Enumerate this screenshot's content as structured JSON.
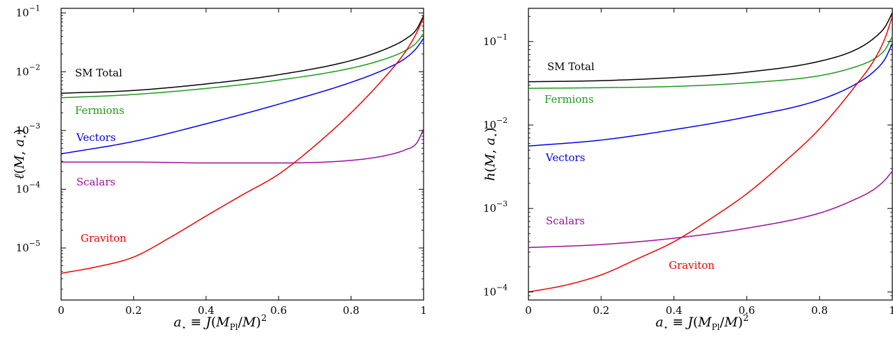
{
  "chart_data": [
    {
      "type": "line",
      "title": "",
      "xlabel": "a⋆ ≡ J(MPl/M)²",
      "ylabel": "ℓ(M, a⋆)",
      "xscale": "linear",
      "yscale": "log",
      "xlim": [
        0,
        1
      ],
      "ylim": [
        1.3e-06,
        0.12
      ],
      "x_ticks": [
        0,
        0.2,
        0.4,
        0.6,
        0.8,
        1
      ],
      "x_tick_labels": [
        "0",
        "0.2",
        "0.4",
        "0.6",
        "0.8",
        "1"
      ],
      "y_ticks": [
        1e-05,
        0.0001,
        0.001,
        0.01,
        0.1
      ],
      "y_tick_exponents": [
        "−5",
        "−4",
        "−3",
        "−2",
        "−1"
      ],
      "grid": false,
      "legend": "inline labels",
      "series": [
        {
          "name": "SM Total",
          "color": "#000000",
          "x": [
            0,
            0.2,
            0.4,
            0.6,
            0.8,
            0.9,
            0.95,
            0.98,
            1.0
          ],
          "y": [
            0.0043,
            0.0048,
            0.0062,
            0.0089,
            0.0155,
            0.025,
            0.036,
            0.052,
            0.09
          ]
        },
        {
          "name": "Fermions",
          "color": "#1a9a1a",
          "x": [
            0,
            0.2,
            0.4,
            0.6,
            0.8,
            0.9,
            0.95,
            0.98,
            1.0
          ],
          "y": [
            0.0036,
            0.0041,
            0.0052,
            0.0072,
            0.0115,
            0.017,
            0.023,
            0.031,
            0.045
          ]
        },
        {
          "name": "Vectors",
          "color": "#0000ee",
          "x": [
            0,
            0.2,
            0.4,
            0.6,
            0.8,
            0.9,
            0.95,
            0.98,
            1.0
          ],
          "y": [
            0.0004,
            0.00065,
            0.0013,
            0.0028,
            0.0066,
            0.0115,
            0.017,
            0.025,
            0.037
          ]
        },
        {
          "name": "Scalars",
          "color": "#9a109a",
          "x": [
            0,
            0.2,
            0.4,
            0.6,
            0.8,
            0.9,
            0.95,
            0.98,
            1.0
          ],
          "y": [
            0.00029,
            0.00029,
            0.00028,
            0.00028,
            0.00031,
            0.00038,
            0.00047,
            0.0006,
            0.00105
          ]
        },
        {
          "name": "Graviton",
          "color": "#ee0000",
          "x": [
            0,
            0.1,
            0.2,
            0.3,
            0.4,
            0.5,
            0.6,
            0.7,
            0.8,
            0.9,
            0.95,
            0.98,
            1.0
          ],
          "y": [
            3.7e-06,
            4.8e-06,
            7e-06,
            1.5e-05,
            3.5e-05,
            8e-05,
            0.00018,
            0.00055,
            0.002,
            0.009,
            0.022,
            0.045,
            0.085
          ]
        }
      ]
    },
    {
      "type": "line",
      "title": "",
      "xlabel": "a⋆ ≡ J(MPl/M)²",
      "ylabel": "h(M, a⋆)",
      "xscale": "linear",
      "yscale": "log",
      "xlim": [
        0,
        1
      ],
      "ylim": [
        8e-05,
        0.25
      ],
      "x_ticks": [
        0,
        0.2,
        0.4,
        0.6,
        0.8,
        1
      ],
      "x_tick_labels": [
        "0",
        "0.2",
        "0.4",
        "0.6",
        "0.8",
        "1"
      ],
      "y_ticks": [
        0.0001,
        0.001,
        0.01,
        0.1
      ],
      "y_tick_exponents": [
        "−4",
        "−3",
        "−2",
        "−1"
      ],
      "grid": false,
      "legend": "inline labels",
      "series": [
        {
          "name": "SM Total",
          "color": "#000000",
          "x": [
            0,
            0.2,
            0.4,
            0.6,
            0.8,
            0.9,
            0.95,
            0.98,
            1.0
          ],
          "y": [
            0.033,
            0.034,
            0.037,
            0.043,
            0.058,
            0.08,
            0.11,
            0.15,
            0.22
          ]
        },
        {
          "name": "Fermions",
          "color": "#1a9a1a",
          "x": [
            0,
            0.2,
            0.4,
            0.6,
            0.8,
            0.9,
            0.95,
            0.98,
            1.0
          ],
          "y": [
            0.0275,
            0.028,
            0.029,
            0.032,
            0.039,
            0.05,
            0.062,
            0.08,
            0.115
          ]
        },
        {
          "name": "Vectors",
          "color": "#0000ee",
          "x": [
            0,
            0.2,
            0.4,
            0.6,
            0.8,
            0.9,
            0.95,
            0.98,
            1.0
          ],
          "y": [
            0.0056,
            0.0066,
            0.0088,
            0.0125,
            0.02,
            0.031,
            0.044,
            0.062,
            0.095
          ]
        },
        {
          "name": "Scalars",
          "color": "#9a109a",
          "x": [
            0,
            0.2,
            0.4,
            0.6,
            0.8,
            0.9,
            0.95,
            0.98,
            1.0
          ],
          "y": [
            0.00034,
            0.00037,
            0.00044,
            0.00058,
            0.00088,
            0.0013,
            0.0017,
            0.0022,
            0.0028
          ]
        },
        {
          "name": "Graviton",
          "color": "#ee0000",
          "x": [
            0,
            0.1,
            0.2,
            0.3,
            0.4,
            0.5,
            0.6,
            0.7,
            0.8,
            0.9,
            0.95,
            0.98,
            1.0
          ],
          "y": [
            0.0001,
            0.00012,
            0.00016,
            0.00025,
            0.0004,
            0.00075,
            0.0015,
            0.0035,
            0.009,
            0.03,
            0.06,
            0.11,
            0.2
          ]
        }
      ]
    }
  ]
}
